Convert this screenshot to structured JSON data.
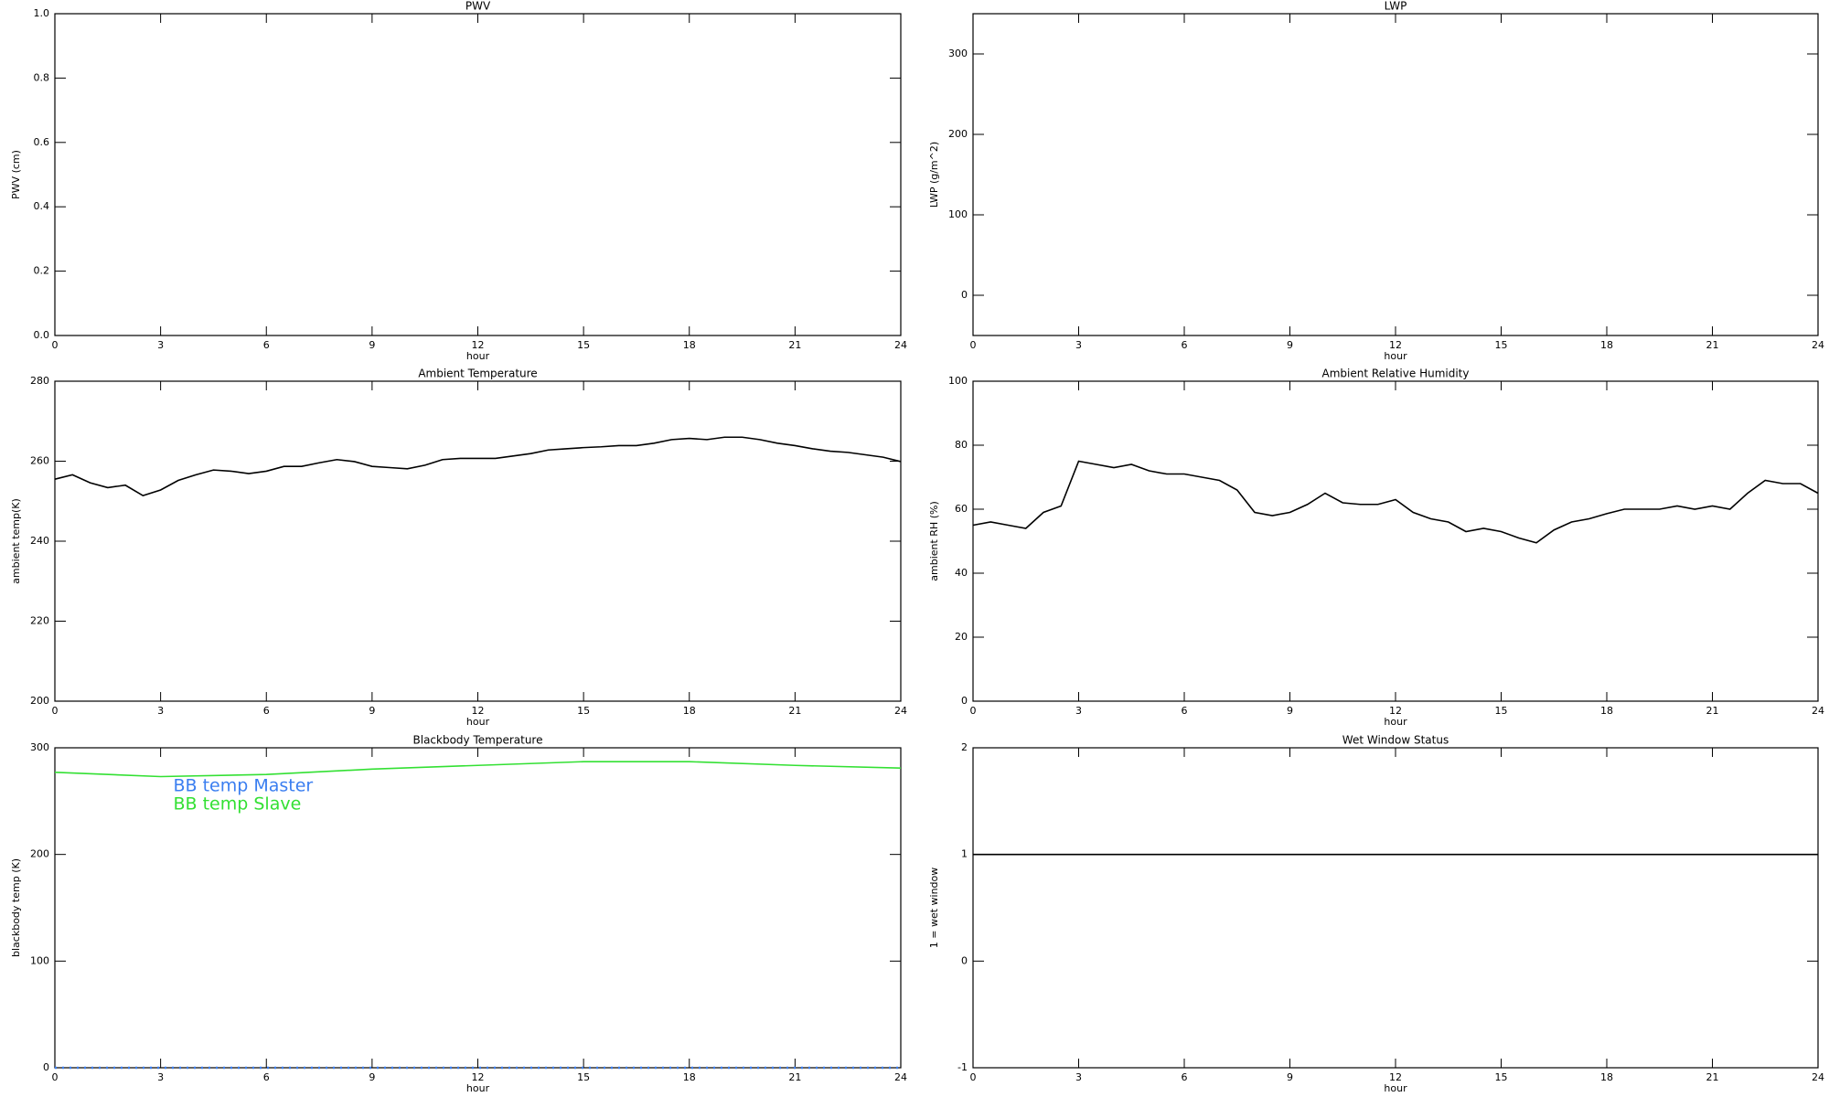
{
  "chart_data": [
    {
      "type": "line",
      "title": "PWV",
      "xlabel": "hour",
      "ylabel": "PWV (cm)",
      "xlim": [
        0,
        24
      ],
      "xticks": [
        0,
        3,
        6,
        9,
        12,
        15,
        18,
        21,
        24
      ],
      "ylim": [
        0,
        1
      ],
      "yticks": [
        {
          "value": 0,
          "label": "0.0"
        },
        0.2,
        0.4,
        0.6,
        0.8,
        {
          "value": 1,
          "label": "1.0"
        }
      ]
    },
    {
      "type": "line",
      "title": "LWP",
      "xlabel": "hour",
      "ylabel": "LWP (g/m^2)",
      "xlim": [
        0,
        24
      ],
      "xticks": [
        0,
        3,
        6,
        9,
        12,
        15,
        18,
        21,
        24
      ],
      "ylim": [
        -50,
        350
      ],
      "yticks": [
        0,
        100,
        200,
        300
      ]
    },
    {
      "type": "line",
      "title": "Ambient Temperature",
      "xlabel": "hour",
      "ylabel": "ambient temp(K)",
      "xlim": [
        0,
        24
      ],
      "xticks": [
        0,
        3,
        6,
        9,
        12,
        15,
        18,
        21,
        24
      ],
      "ylim": [
        200,
        280
      ],
      "yticks": [
        200,
        220,
        240,
        260,
        280
      ],
      "color": "#000000",
      "x": [
        0,
        0.5,
        1,
        1.5,
        2,
        2.5,
        3,
        3.5,
        4,
        4.5,
        5,
        5.5,
        6,
        6.5,
        7,
        7.5,
        8,
        8.5,
        9,
        9.5,
        10,
        10.5,
        11,
        11.5,
        12,
        12.5,
        13,
        13.5,
        14,
        14.5,
        15,
        15.5,
        16,
        16.5,
        17,
        17.5,
        18,
        18.5,
        19,
        19.5,
        20,
        20.5,
        21,
        21.5,
        22,
        22.5,
        23,
        23.5,
        24
      ],
      "values": [
        255.5,
        256.6,
        254.6,
        253.4,
        254,
        251.4,
        252.8,
        255.2,
        256.6,
        257.8,
        257.5,
        256.9,
        257.5,
        258.7,
        258.7,
        259.6,
        260.4,
        259.9,
        258.7,
        258.4,
        258.1,
        259,
        260.4,
        260.7,
        260.7,
        260.7,
        261.3,
        261.9,
        262.8,
        263.1,
        263.4,
        263.6,
        263.9,
        263.9,
        264.5,
        265.4,
        265.7,
        265.4,
        266,
        266,
        265.4,
        264.5,
        263.9,
        263.1,
        262.5,
        262.2,
        261.6,
        261,
        259.9
      ]
    },
    {
      "type": "line",
      "title": "Ambient Relative Humidity",
      "xlabel": "hour",
      "ylabel": "ambient RH (%)",
      "xlim": [
        0,
        24
      ],
      "xticks": [
        0,
        3,
        6,
        9,
        12,
        15,
        18,
        21,
        24
      ],
      "ylim": [
        0,
        100
      ],
      "yticks": [
        0,
        20,
        40,
        60,
        80,
        100
      ],
      "color": "#000000",
      "x": [
        0,
        0.5,
        1,
        1.5,
        2,
        2.5,
        3,
        3.5,
        4,
        4.5,
        5,
        5.5,
        6,
        6.5,
        7,
        7.5,
        8,
        8.5,
        9,
        9.5,
        10,
        10.5,
        11,
        11.5,
        12,
        12.5,
        13,
        13.5,
        14,
        14.5,
        15,
        15.5,
        16,
        16.5,
        17,
        17.5,
        18,
        18.5,
        19,
        19.5,
        20,
        20.5,
        21,
        21.5,
        22,
        22.5,
        23,
        23.5,
        24
      ],
      "values": [
        55,
        56,
        55,
        54,
        59,
        61,
        75,
        74,
        73,
        74,
        72,
        71,
        71,
        70,
        69,
        66,
        59,
        58,
        59,
        61.5,
        65,
        62,
        61.5,
        61.5,
        63,
        59,
        57,
        56,
        53,
        54,
        53,
        51,
        49.5,
        53.5,
        56,
        57,
        58.6,
        60,
        60,
        60,
        61,
        60,
        61,
        60,
        65,
        69,
        68,
        68,
        65
      ]
    },
    {
      "type": "line",
      "title": "Blackbody Temperature",
      "xlabel": "hour",
      "ylabel": "blackbody temp (K)",
      "xlim": [
        0,
        24
      ],
      "xticks": [
        0,
        3,
        6,
        9,
        12,
        15,
        18,
        21,
        24
      ],
      "ylim": [
        0,
        300
      ],
      "yticks": [
        0,
        100,
        200,
        300
      ],
      "legend": "upper left",
      "x": [
        0,
        3,
        6,
        9,
        12,
        15,
        18,
        21,
        24
      ],
      "series": [
        {
          "name": "BB temp Master",
          "color": "#3a7ef0",
          "linestyle": "dotted",
          "values": [
            0,
            0,
            0,
            0,
            0,
            0,
            0,
            0,
            0
          ]
        },
        {
          "name": "BB temp Slave",
          "color": "#33e033",
          "linestyle": "solid",
          "values": [
            277,
            273,
            275,
            280,
            283.5,
            287,
            287,
            283.5,
            281
          ]
        }
      ]
    },
    {
      "type": "line",
      "title": "Wet Window Status",
      "xlabel": "hour",
      "ylabel": "1 = wet window",
      "xlim": [
        0,
        24
      ],
      "xticks": [
        0,
        3,
        6,
        9,
        12,
        15,
        18,
        21,
        24
      ],
      "ylim": [
        -1,
        2
      ],
      "yticks": [
        -1,
        0,
        1,
        2
      ],
      "color": "#000000",
      "x": [
        0,
        24
      ],
      "values": [
        1,
        1
      ]
    }
  ]
}
